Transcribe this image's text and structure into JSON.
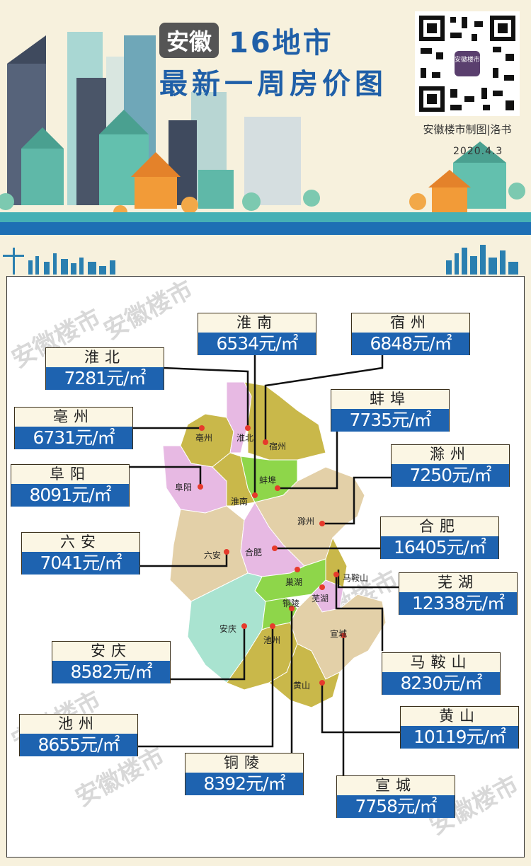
{
  "header": {
    "badge": "安徽",
    "title_line1": "16地市",
    "title_line2": "最新一周房价图",
    "credit": "安徽楼市制图|洛书",
    "date": "2020.4.3",
    "qr_caption": "安徽楼市"
  },
  "watermark": "安徽楼市",
  "colors": {
    "title_blue": "#1f5fa8",
    "price_blue": "#1e63b0",
    "olive": "#c9b84a",
    "pink": "#e7b9e3",
    "green": "#8ed64a",
    "tan": "#e3d0a8",
    "aqua": "#a9e3d0"
  },
  "cities": [
    {
      "id": "huainan",
      "name": "淮南",
      "price": "6534元/㎡",
      "map_label": "淮南"
    },
    {
      "id": "suzhou",
      "name": "宿州",
      "price": "6848元/㎡",
      "map_label": "宿州"
    },
    {
      "id": "huaibei",
      "name": "淮北",
      "price": "7281元/㎡",
      "map_label": "淮北"
    },
    {
      "id": "bengbu",
      "name": "蚌埠",
      "price": "7735元/㎡",
      "map_label": "蚌埠"
    },
    {
      "id": "bozhou",
      "name": "亳州",
      "price": "6731元/㎡",
      "map_label": "亳州"
    },
    {
      "id": "chuzhou",
      "name": "滁州",
      "price": "7250元/㎡",
      "map_label": "滁州"
    },
    {
      "id": "fuyang",
      "name": "阜阳",
      "price": "8091元/㎡",
      "map_label": "阜阳"
    },
    {
      "id": "hefei",
      "name": "合肥",
      "price": "16405元/㎡",
      "map_label": "合肥"
    },
    {
      "id": "luan",
      "name": "六安",
      "price": "7041元/㎡",
      "map_label": "六安"
    },
    {
      "id": "wuhu",
      "name": "芜湖",
      "price": "12338元/㎡",
      "map_label": "芜湖"
    },
    {
      "id": "anqing",
      "name": "安庆",
      "price": "8582元/㎡",
      "map_label": "安庆"
    },
    {
      "id": "maanshan",
      "name": "马鞍山",
      "price": "8230元/㎡",
      "map_label": "马鞍山"
    },
    {
      "id": "chizhou",
      "name": "池州",
      "price": "8655元/㎡",
      "map_label": "池州"
    },
    {
      "id": "huangshan",
      "name": "黄山",
      "price": "10119元/㎡",
      "map_label": "黄山"
    },
    {
      "id": "tongling",
      "name": "铜陵",
      "price": "8392元/㎡",
      "map_label": "铜陵"
    },
    {
      "id": "xuancheng",
      "name": "宣城",
      "price": "7758元/㎡",
      "map_label": "宣城"
    }
  ],
  "other_map_labels": {
    "chaohu": "巢湖"
  }
}
